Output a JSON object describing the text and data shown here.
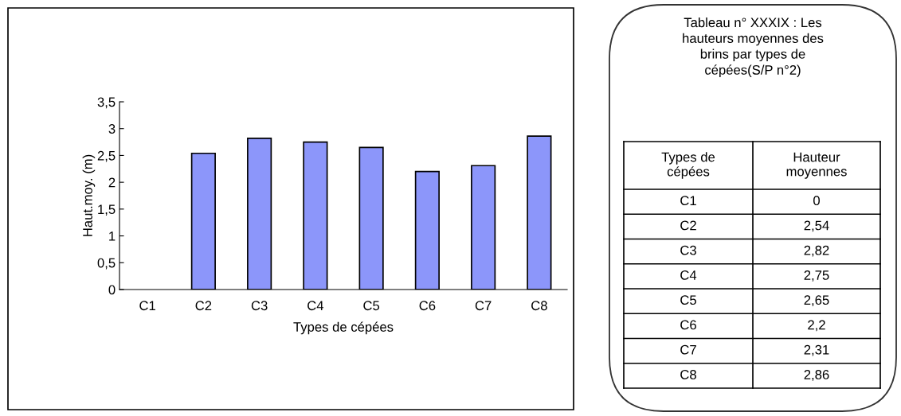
{
  "chart_data": {
    "type": "bar",
    "title": "Tableau n° XXXIX : Les hauteurs moyennes des brins par types de cépées(S/P n°2)",
    "xlabel": "Types de cépées",
    "ylabel": "Haut.moy. (m)",
    "categories": [
      "C1",
      "C2",
      "C3",
      "C4",
      "C5",
      "C6",
      "C7",
      "C8"
    ],
    "values": [
      0,
      2.54,
      2.82,
      2.75,
      2.65,
      2.2,
      2.31,
      2.86
    ],
    "color": "#8c96fa",
    "annotations": [
      "Types de cépées",
      "Hauteur moyennes",
      "0",
      "2,54",
      "2,82",
      "2,75",
      "2,65",
      "2,2",
      "2,31",
      "2,86"
    ],
    "ylim": [
      0,
      3.5
    ],
    "yticks": [
      0,
      {
        "value": 0.5,
        "label": "0,5"
      },
      1,
      {
        "value": 1.5,
        "label": "1,5"
      },
      2,
      {
        "value": 2.5,
        "label": "2,5"
      },
      3,
      {
        "value": 3.5,
        "label": "3,5"
      }
    ],
    "grid": false,
    "legend": false
  }
}
